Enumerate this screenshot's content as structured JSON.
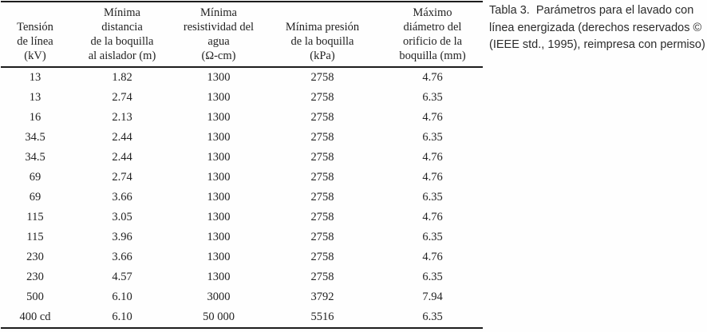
{
  "page": {
    "background_color": "#fefefe",
    "text_color": "#222222",
    "rule_color": "#1c1c1c"
  },
  "table": {
    "columns": [
      {
        "lines": [
          "Tensión",
          "de línea",
          "(kV)"
        ]
      },
      {
        "lines": [
          "Mínima",
          "distancia",
          "de la boquilla",
          "al aislador (m)"
        ]
      },
      {
        "lines": [
          "Mínima",
          "resistividad del",
          "agua",
          "(Ω-cm)"
        ]
      },
      {
        "lines": [
          "Mínima presión",
          "de la boquilla",
          "(kPa)"
        ]
      },
      {
        "lines": [
          "Máximo",
          "diámetro del",
          "orificio de la",
          "boquilla (mm)"
        ]
      }
    ],
    "rows": [
      [
        "13",
        "1.82",
        "1300",
        "2758",
        "4.76"
      ],
      [
        "13",
        "2.74",
        "1300",
        "2758",
        "6.35"
      ],
      [
        "16",
        "2.13",
        "1300",
        "2758",
        "4.76"
      ],
      [
        "34.5",
        "2.44",
        "1300",
        "2758",
        "6.35"
      ],
      [
        "34.5",
        "2.44",
        "1300",
        "2758",
        "4.76"
      ],
      [
        "69",
        "2.74",
        "1300",
        "2758",
        "4.76"
      ],
      [
        "69",
        "3.66",
        "1300",
        "2758",
        "6.35"
      ],
      [
        "115",
        "3.05",
        "1300",
        "2758",
        "4.76"
      ],
      [
        "115",
        "3.96",
        "1300",
        "2758",
        "6.35"
      ],
      [
        "230",
        "3.66",
        "1300",
        "2758",
        "4.76"
      ],
      [
        "230",
        "4.57",
        "1300",
        "2758",
        "6.35"
      ],
      [
        "500",
        "6.10",
        "3000",
        "3792",
        "7.94"
      ],
      [
        "400 cd",
        "6.10",
        "50 000",
        "5516",
        "6.35"
      ]
    ]
  },
  "caption": {
    "text": "Tabla 3.  Parámetros para el lavado con línea energizada (derechos reservados © (IEEE std., 1995), reimpresa con permiso)"
  }
}
